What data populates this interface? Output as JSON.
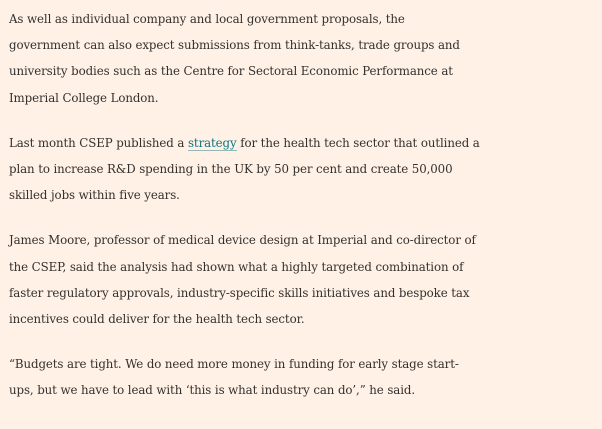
{
  "article": {
    "paragraphs": [
      {
        "lines": [
          "As well as individual company and local government proposals, the",
          "government can also expect submissions from think-tanks, trade groups and",
          "university bodies such as the Centre for Sectoral Economic Performance at",
          "Imperial College London."
        ]
      },
      {
        "line1_before_link": "Last month CSEP published a ",
        "link_text": "strategy",
        "line1_after_link": " for the health tech sector that outlined a",
        "line2": "plan to increase R&D spending in the UK by 50 per cent and create 50,000",
        "line3": "skilled jobs within five years."
      },
      {
        "lines": [
          "James Moore, professor of medical device design at Imperial and co-director of",
          "the CSEP, said the analysis had shown what a highly targeted combination of",
          "faster regulatory approvals, industry-specific skills initiatives and bespoke tax",
          "incentives could deliver for the health tech sector."
        ]
      },
      {
        "lines": [
          "“Budgets are tight. We do need more money in funding for early stage start-",
          "ups, but we have to lead with ‘this is what industry can do’,” he said."
        ]
      }
    ]
  },
  "colors": {
    "background": "#fff1e5",
    "text": "#33302e",
    "link": "#0d7680"
  }
}
